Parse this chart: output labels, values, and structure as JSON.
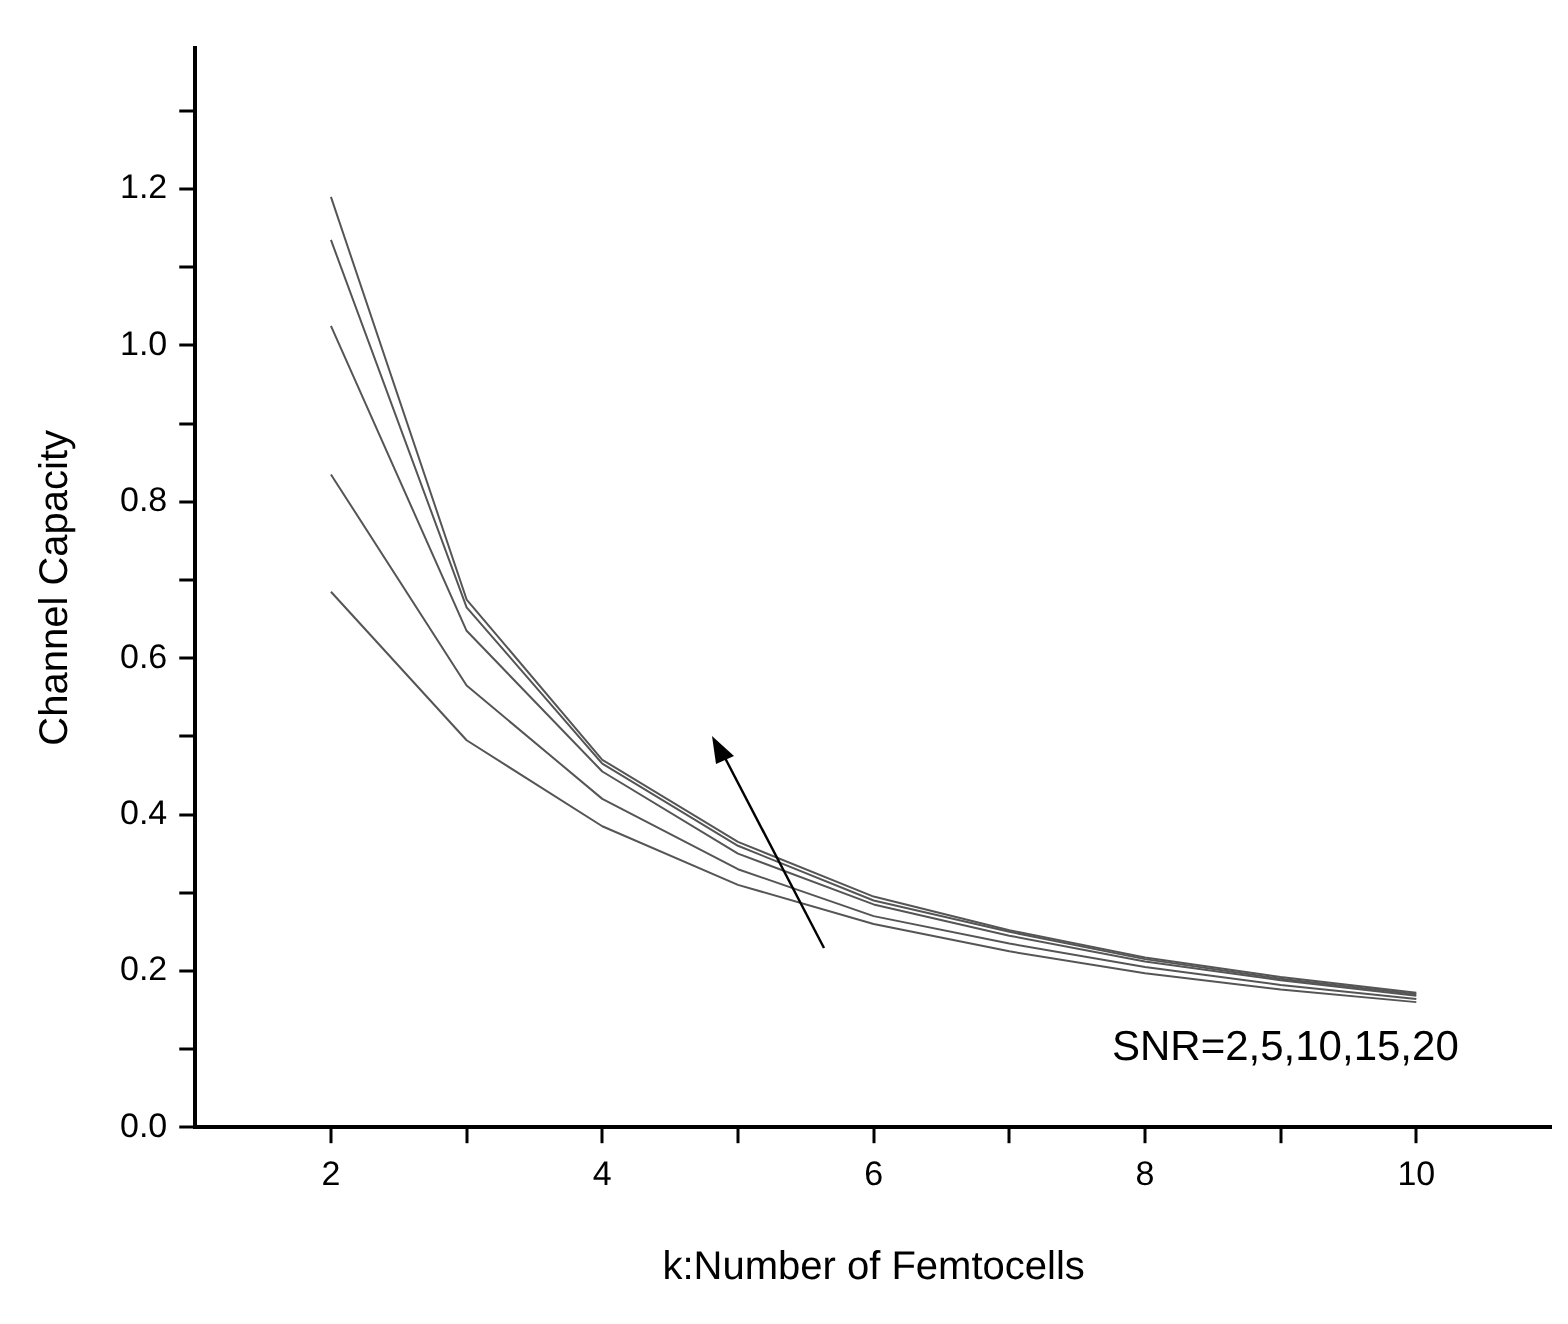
{
  "chart_data": {
    "type": "line",
    "xlabel": "k:Number of Femtocells",
    "ylabel": "Channel Capacity",
    "x": [
      2,
      3,
      4,
      5,
      6,
      7,
      8,
      9,
      10
    ],
    "series": [
      {
        "color": "#555555",
        "values": [
          0.685,
          0.495,
          0.385,
          0.31,
          0.26,
          0.225,
          0.197,
          0.176,
          0.16
        ]
      },
      {
        "color": "#555555",
        "values": [
          0.835,
          0.565,
          0.42,
          0.33,
          0.27,
          0.235,
          0.205,
          0.182,
          0.164
        ]
      },
      {
        "color": "#555555",
        "values": [
          1.025,
          0.635,
          0.455,
          0.35,
          0.285,
          0.245,
          0.212,
          0.188,
          0.168
        ]
      },
      {
        "color": "#555555",
        "values": [
          1.135,
          0.665,
          0.465,
          0.36,
          0.29,
          0.25,
          0.215,
          0.19,
          0.17
        ]
      },
      {
        "color": "#555555",
        "values": [
          1.19,
          0.675,
          0.47,
          0.365,
          0.295,
          0.252,
          0.217,
          0.192,
          0.172
        ]
      }
    ],
    "xlim": [
      1,
      11
    ],
    "xticks": [
      2,
      {
        "value": 3,
        "label": null
      },
      4,
      {
        "value": 5,
        "label": null
      },
      6,
      {
        "value": 7,
        "label": null
      },
      8,
      {
        "value": 9,
        "label": null
      },
      10
    ],
    "ylim": [
      0,
      1.38
    ],
    "yticks": [
      {
        "value": 0,
        "label": "0.0"
      },
      {
        "value": 0.1,
        "label": null
      },
      0.2,
      {
        "value": 0.3,
        "label": null
      },
      0.4,
      {
        "value": 0.5,
        "label": null
      },
      0.6,
      {
        "value": 0.7,
        "label": null
      },
      0.8,
      {
        "value": 0.9,
        "label": null
      },
      {
        "value": 1,
        "label": "1.0"
      },
      {
        "value": 1.1,
        "label": null
      },
      1.2,
      {
        "value": 1.3,
        "label": null
      }
    ],
    "annotations": [
      "SNR=2,5,10,15,20"
    ],
    "grid": false,
    "legend": false,
    "marker": "none",
    "line_style": "solid"
  }
}
